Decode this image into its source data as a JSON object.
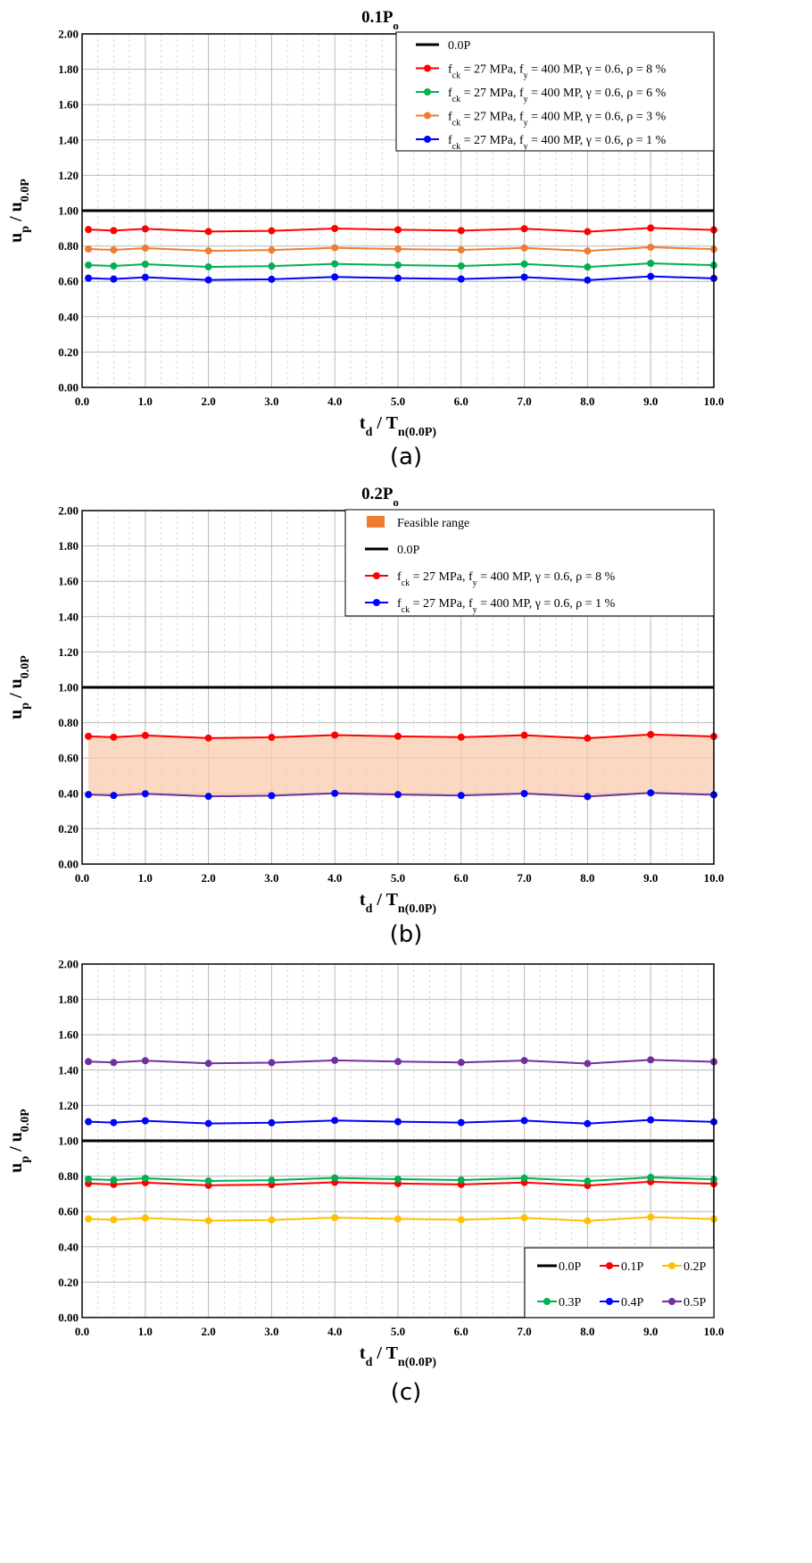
{
  "chart_data": [
    {
      "type": "line",
      "panel_label": "(a)",
      "title": "0.1P",
      "title_sub": "o",
      "xlabel": "t",
      "xlabel_sub": "d",
      "xlabel_mid": " / T",
      "xlabel_sub2": "n(0.0P)",
      "ylabel": "u",
      "ylabel_sub": "p",
      "ylabel_mid": " / u",
      "ylabel_sub2": "0.0P",
      "xlim": [
        0,
        10
      ],
      "ylim": [
        0,
        2
      ],
      "x_ticks": [
        "0.0",
        "1.0",
        "2.0",
        "3.0",
        "4.0",
        "5.0",
        "6.0",
        "7.0",
        "8.0",
        "9.0",
        "10.0"
      ],
      "y_ticks": [
        "0.00",
        "0.20",
        "0.40",
        "0.60",
        "0.80",
        "1.00",
        "1.20",
        "1.40",
        "1.60",
        "1.80",
        "2.00"
      ],
      "grid": true,
      "legend_position": "top-right",
      "x": [
        0.1,
        0.5,
        1,
        2,
        3,
        4,
        5,
        6,
        7,
        8,
        9,
        10
      ],
      "series": [
        {
          "name": "0.0P",
          "color": "#000000",
          "markers": false,
          "values": [
            1,
            1,
            1,
            1,
            1,
            1,
            1,
            1,
            1,
            1,
            1,
            1
          ]
        },
        {
          "name": "f_ck = 27 MPa, f_y = 400 MP, γ = 0.6, ρ = 8 %",
          "color": "#ff0000",
          "markers": true,
          "values": [
            0.893,
            0.887,
            0.897,
            0.882,
            0.886,
            0.899,
            0.892,
            0.887,
            0.898,
            0.881,
            0.902,
            0.891
          ]
        },
        {
          "name": "f_ck = 27 MPa, f_y = 400 MP, γ = 0.6, ρ = 6 %",
          "color": "#00b050",
          "markers": true,
          "values": [
            0.692,
            0.687,
            0.697,
            0.682,
            0.686,
            0.699,
            0.692,
            0.687,
            0.698,
            0.681,
            0.702,
            0.691
          ]
        },
        {
          "name": "f_ck = 27 MPa, f_y = 400 MP, γ = 0.6, ρ = 3 %",
          "color": "#ed7d31",
          "markers": true,
          "values": [
            0.783,
            0.778,
            0.788,
            0.773,
            0.777,
            0.79,
            0.783,
            0.778,
            0.789,
            0.772,
            0.793,
            0.782
          ]
        },
        {
          "name": "f_ck = 27 MPa, f_y = 400 MP, γ = 0.6, ρ = 1 %",
          "color": "#0000ff",
          "markers": true,
          "values": [
            0.618,
            0.613,
            0.623,
            0.608,
            0.612,
            0.625,
            0.618,
            0.613,
            0.624,
            0.607,
            0.628,
            0.617
          ]
        }
      ]
    },
    {
      "type": "line",
      "panel_label": "(b)",
      "title": "0.2P",
      "title_sub": "o",
      "xlabel": "t",
      "xlabel_sub": "d",
      "xlabel_mid": " / T",
      "xlabel_sub2": "n(0.0P)",
      "ylabel": "u",
      "ylabel_sub": "p",
      "ylabel_mid": " / u",
      "ylabel_sub2": "0.0P",
      "xlim": [
        0,
        10
      ],
      "ylim": [
        0,
        2
      ],
      "x_ticks": [
        "0.0",
        "1.0",
        "2.0",
        "3.0",
        "4.0",
        "5.0",
        "6.0",
        "7.0",
        "8.0",
        "9.0",
        "10.0"
      ],
      "y_ticks": [
        "0.00",
        "0.20",
        "0.40",
        "0.60",
        "0.80",
        "1.00",
        "1.20",
        "1.40",
        "1.60",
        "1.80",
        "2.00"
      ],
      "grid": true,
      "legend_position": "top-right",
      "band": {
        "name": "Feasible range",
        "color": "#ed7d31",
        "fill": "#f8cbad",
        "between": [
          1,
          2
        ]
      },
      "x": [
        0.1,
        0.5,
        1,
        2,
        3,
        4,
        5,
        6,
        7,
        8,
        9,
        10
      ],
      "series": [
        {
          "name": "0.0P",
          "color": "#000000",
          "markers": false,
          "values": [
            1,
            1,
            1,
            1,
            1,
            1,
            1,
            1,
            1,
            1,
            1,
            1
          ]
        },
        {
          "name": "f_ck = 27 MPa, f_y = 400 MP, γ = 0.6, ρ = 8 %",
          "color": "#ff0000",
          "markers": true,
          "values": [
            0.723,
            0.718,
            0.728,
            0.713,
            0.717,
            0.73,
            0.723,
            0.718,
            0.729,
            0.712,
            0.733,
            0.722
          ]
        },
        {
          "name": "f_ck = 27 MPa, f_y = 400 MP, γ = 0.6, ρ = 1 %",
          "color": "#0000ff",
          "markers": true,
          "line_color": "#7030a0",
          "values": [
            0.393,
            0.388,
            0.398,
            0.383,
            0.387,
            0.4,
            0.393,
            0.388,
            0.399,
            0.382,
            0.403,
            0.392
          ]
        }
      ]
    },
    {
      "type": "line",
      "panel_label": "(c)",
      "title": "",
      "title_sub": "",
      "xlabel": "t",
      "xlabel_sub": "d",
      "xlabel_mid": " / T",
      "xlabel_sub2": "n(0.0P)",
      "ylabel": "u",
      "ylabel_sub": "p",
      "ylabel_mid": " / u",
      "ylabel_sub2": "0.0P",
      "xlim": [
        0,
        10
      ],
      "ylim": [
        0,
        2
      ],
      "x_ticks": [
        "0.0",
        "1.0",
        "2.0",
        "3.0",
        "4.0",
        "5.0",
        "6.0",
        "7.0",
        "8.0",
        "9.0",
        "10.0"
      ],
      "y_ticks": [
        "0.00",
        "0.20",
        "0.40",
        "0.60",
        "0.80",
        "1.00",
        "1.20",
        "1.40",
        "1.60",
        "1.80",
        "2.00"
      ],
      "grid": true,
      "legend_position": "bottom-right",
      "x": [
        0.1,
        0.5,
        1,
        2,
        3,
        4,
        5,
        6,
        7,
        8,
        9,
        10
      ],
      "series": [
        {
          "name": "0.0P",
          "color": "#000000",
          "markers": false,
          "values": [
            1,
            1,
            1,
            1,
            1,
            1,
            1,
            1,
            1,
            1,
            1,
            1
          ]
        },
        {
          "name": "0.1P",
          "color": "#ff0000",
          "markers": true,
          "values": [
            0.758,
            0.753,
            0.763,
            0.748,
            0.752,
            0.765,
            0.758,
            0.753,
            0.764,
            0.747,
            0.768,
            0.757
          ]
        },
        {
          "name": "0.2P",
          "color": "#ffc000",
          "markers": true,
          "values": [
            0.558,
            0.553,
            0.563,
            0.548,
            0.552,
            0.565,
            0.558,
            0.553,
            0.564,
            0.547,
            0.568,
            0.557
          ]
        },
        {
          "name": "0.3P",
          "color": "#00b050",
          "markers": true,
          "values": [
            0.783,
            0.778,
            0.788,
            0.773,
            0.777,
            0.79,
            0.783,
            0.778,
            0.789,
            0.772,
            0.793,
            0.782
          ]
        },
        {
          "name": "0.4P",
          "color": "#0000ff",
          "markers": true,
          "values": [
            1.108,
            1.103,
            1.113,
            1.098,
            1.102,
            1.115,
            1.108,
            1.103,
            1.114,
            1.097,
            1.118,
            1.107
          ]
        },
        {
          "name": "0.5P",
          "color": "#7030a0",
          "markers": true,
          "values": [
            1.448,
            1.443,
            1.453,
            1.438,
            1.442,
            1.455,
            1.448,
            1.443,
            1.454,
            1.437,
            1.458,
            1.447
          ]
        }
      ]
    }
  ]
}
